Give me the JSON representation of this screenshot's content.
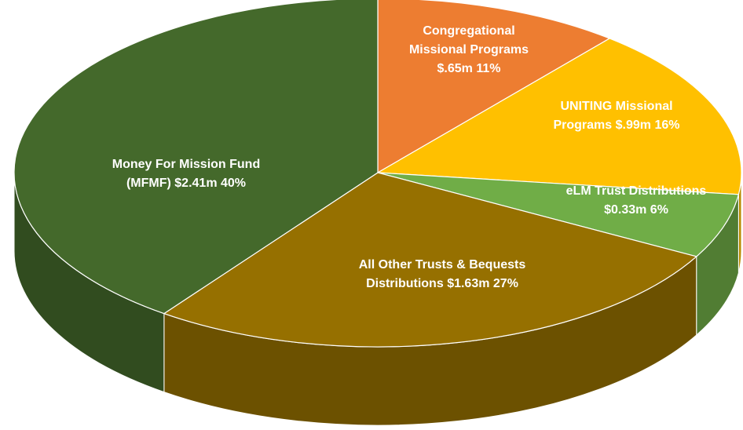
{
  "chart_data": {
    "type": "pie3d",
    "categories": [
      "Congregational Missional Programs",
      "UNITING Missional Programs",
      "eLM Trust Distributions",
      "All Other Trusts & Bequests Distributions",
      "Money For Mission Fund (MFMF)"
    ],
    "amount_labels": [
      "$.65m",
      "$.99m",
      "$0.33m",
      "$1.63m",
      "$2.41m"
    ],
    "values": [
      11,
      16,
      6,
      27,
      40
    ],
    "value_labels": [
      "11%",
      "16%",
      "6%",
      "27%",
      "40%"
    ],
    "colors": [
      "#ed7d31",
      "#ffc000",
      "#70ad47",
      "#967000",
      "#44692b"
    ]
  }
}
